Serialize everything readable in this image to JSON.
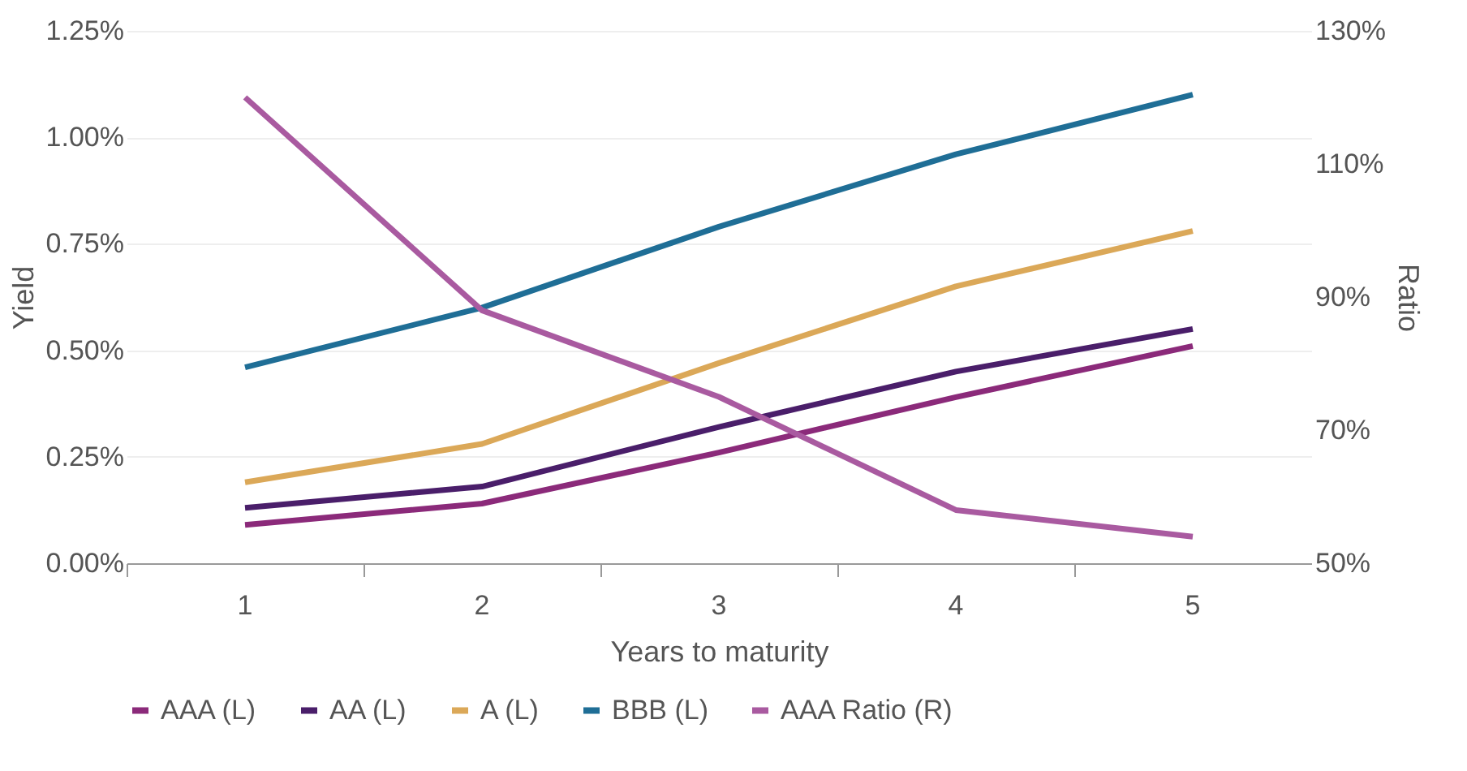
{
  "chart_data": {
    "type": "line",
    "xlabel": "Years to maturity",
    "ylabel": "Yield",
    "y2label": "Ratio",
    "categories": [
      "1",
      "2",
      "3",
      "4",
      "5"
    ],
    "series": [
      {
        "name": "AAA (L)",
        "color": "#8b2a7a",
        "values": [
          0.09,
          0.14,
          0.26,
          0.39,
          0.51
        ]
      },
      {
        "name": "AA (L)",
        "color": "#4a1e6a",
        "values": [
          0.13,
          0.18,
          0.32,
          0.45,
          0.55
        ]
      },
      {
        "name": "A (L)",
        "color": "#dba858",
        "values": [
          0.19,
          0.28,
          0.47,
          0.65,
          0.78
        ]
      },
      {
        "name": "BBB (L)",
        "color": "#1f6e96",
        "values": [
          0.46,
          0.6,
          0.79,
          0.96,
          1.1
        ]
      },
      {
        "name": "AAA Ratio (R)",
        "color": "#a95aa0",
        "axis": "y2",
        "values": [
          120,
          88,
          75,
          58,
          54
        ]
      }
    ],
    "ylim": [
      0,
      1.25
    ],
    "yticks": [
      {
        "value": 0,
        "label": "0.00%"
      },
      {
        "value": 0.25,
        "label": "0.25%"
      },
      {
        "value": 0.5,
        "label": "0.50%"
      },
      {
        "value": 0.75,
        "label": "0.75%"
      },
      {
        "value": 1.0,
        "label": "1.00%"
      },
      {
        "value": 1.25,
        "label": "1.25%"
      }
    ],
    "y2lim": [
      50,
      130
    ],
    "y2ticks": [
      {
        "value": 50,
        "label": "50%"
      },
      {
        "value": 70,
        "label": "70%"
      },
      {
        "value": 90,
        "label": "90%"
      },
      {
        "value": 110,
        "label": "110%"
      },
      {
        "value": 130,
        "label": "130%"
      }
    ],
    "grid": "y",
    "legend": "bottom",
    "marker": "none",
    "line_style": "solid"
  }
}
